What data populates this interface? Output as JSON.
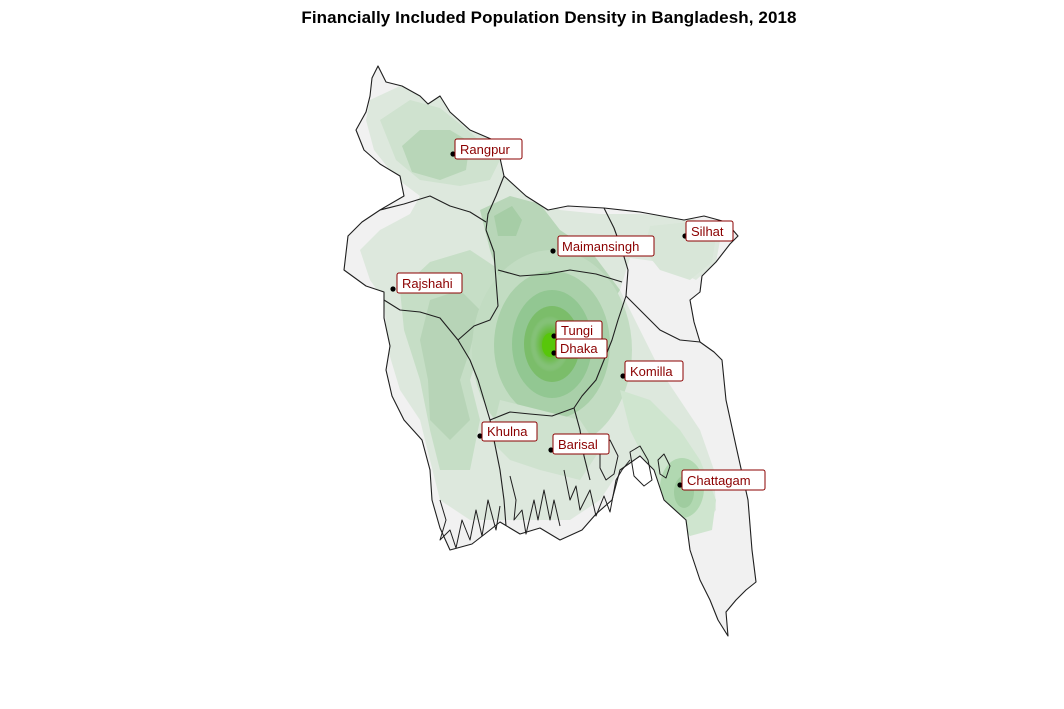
{
  "title": "Financially Included Population Density in Bangladesh, 2018",
  "colors": {
    "border": "#1f1f1f",
    "land": "#f1f1f1",
    "label_text": "#8b0000",
    "density_low": "#dde8dd",
    "density_mid": "#9fcc9f",
    "density_high": "#4fbf1a"
  },
  "cities": [
    {
      "id": "rangpur",
      "name": "Rangpur"
    },
    {
      "id": "maimansingh",
      "name": "Maimansingh"
    },
    {
      "id": "silhat",
      "name": "Silhat"
    },
    {
      "id": "rajshahi",
      "name": "Rajshahi"
    },
    {
      "id": "tungi",
      "name": "Tungi"
    },
    {
      "id": "dhaka",
      "name": "Dhaka"
    },
    {
      "id": "komilla",
      "name": "Komilla"
    },
    {
      "id": "khulna",
      "name": "Khulna"
    },
    {
      "id": "barisal",
      "name": "Barisal"
    },
    {
      "id": "chattagam",
      "name": "Chattagam"
    }
  ]
}
